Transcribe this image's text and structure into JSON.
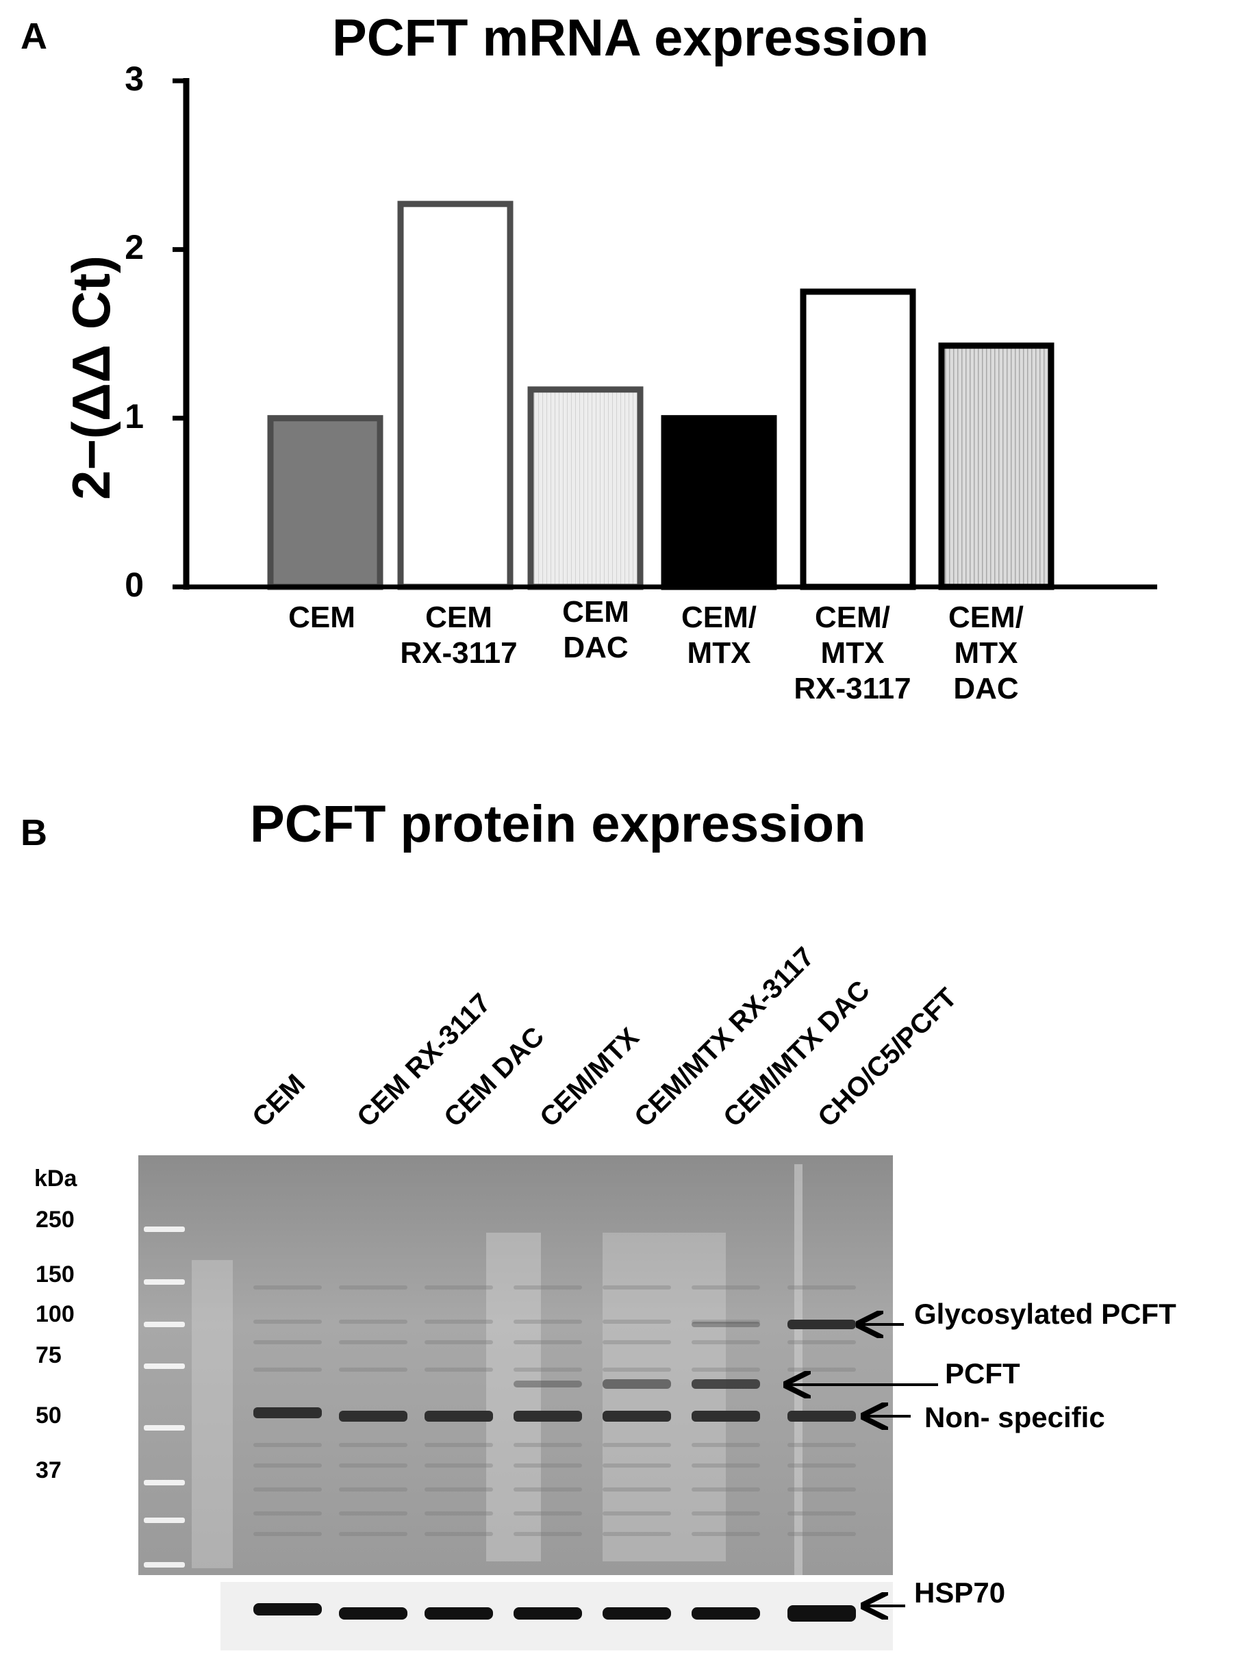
{
  "panels": {
    "a_letter": "A",
    "b_letter": "B"
  },
  "chart_data": {
    "type": "bar",
    "title": "PCFT mRNA expression",
    "ylabel": "2−(ΔΔ Ct)",
    "ylim": [
      0,
      3
    ],
    "yticks": [
      0,
      1,
      2,
      3
    ],
    "categories": [
      [
        "CEM"
      ],
      [
        "CEM",
        "RX-3117"
      ],
      [
        "CEM",
        "DAC"
      ],
      [
        "CEM/",
        "MTX"
      ],
      [
        "CEM/",
        "MTX",
        "RX-3117"
      ],
      [
        "CEM/",
        "MTX",
        "DAC"
      ]
    ],
    "values": [
      1.0,
      2.27,
      1.17,
      1.0,
      1.75,
      1.43
    ],
    "fills": [
      "#7a7a7a",
      "#ffffff",
      "#e6e6e6",
      "#000000",
      "#ffffff",
      "#c8c8c8"
    ],
    "strokes": [
      "#4d4d4d",
      "#4d4d4d",
      "#4d4d4d",
      "#000000",
      "#000000",
      "#000000"
    ],
    "grid": false
  },
  "blot": {
    "title": "PCFT protein expression",
    "lanes": [
      "CEM",
      "CEM RX-3117",
      "CEM DAC",
      "CEM/MTX",
      "CEM/MTX RX-3117",
      "CEM/MTX DAC",
      "CHO/C5/PCFT"
    ],
    "kda_header": "kDa",
    "markers": [
      "250",
      "150",
      "100",
      "75",
      "50",
      "37"
    ],
    "band_labels": {
      "glycosylated": "Glycosylated PCFT",
      "pcft": "PCFT",
      "nonspecific": "Non- specific",
      "hsp70": "HSP70"
    }
  }
}
